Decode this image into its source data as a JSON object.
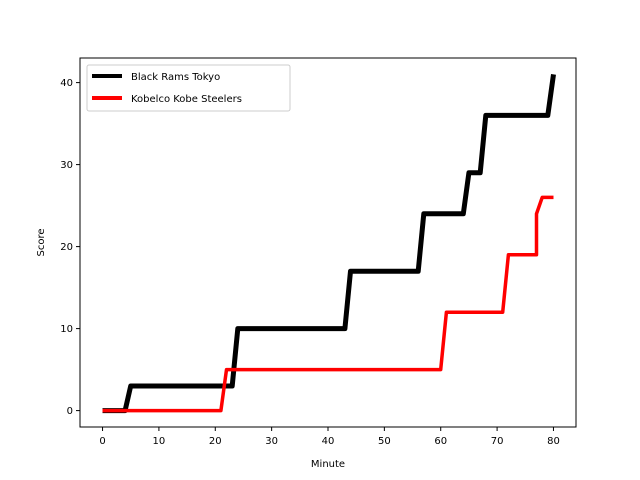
{
  "chart_data": {
    "type": "line",
    "title": "",
    "xlabel": "Minute",
    "ylabel": "Score",
    "xlim": [
      -4,
      84
    ],
    "ylim": [
      -2,
      43
    ],
    "xticks": [
      0,
      10,
      20,
      30,
      40,
      50,
      60,
      70,
      80
    ],
    "yticks": [
      0,
      10,
      20,
      30,
      40
    ],
    "grid": false,
    "legend_position": "top-left",
    "series": [
      {
        "name": "Black Rams Tokyo",
        "color": "#000000",
        "points": [
          [
            0,
            0
          ],
          [
            4,
            0
          ],
          [
            5,
            3
          ],
          [
            22,
            3
          ],
          [
            23,
            3
          ],
          [
            24,
            10
          ],
          [
            43,
            10
          ],
          [
            44,
            17
          ],
          [
            56,
            17
          ],
          [
            57,
            24
          ],
          [
            64,
            24
          ],
          [
            65,
            29
          ],
          [
            67,
            29
          ],
          [
            68,
            36
          ],
          [
            79,
            36
          ],
          [
            80,
            41
          ]
        ]
      },
      {
        "name": "Kobelco Kobe Steelers",
        "color": "#ff0000",
        "points": [
          [
            0,
            0
          ],
          [
            21,
            0
          ],
          [
            22,
            5
          ],
          [
            60,
            5
          ],
          [
            61,
            12
          ],
          [
            71,
            12
          ],
          [
            72,
            19
          ],
          [
            77,
            19
          ],
          [
            77,
            24
          ],
          [
            78,
            26
          ],
          [
            80,
            26
          ]
        ]
      }
    ]
  }
}
